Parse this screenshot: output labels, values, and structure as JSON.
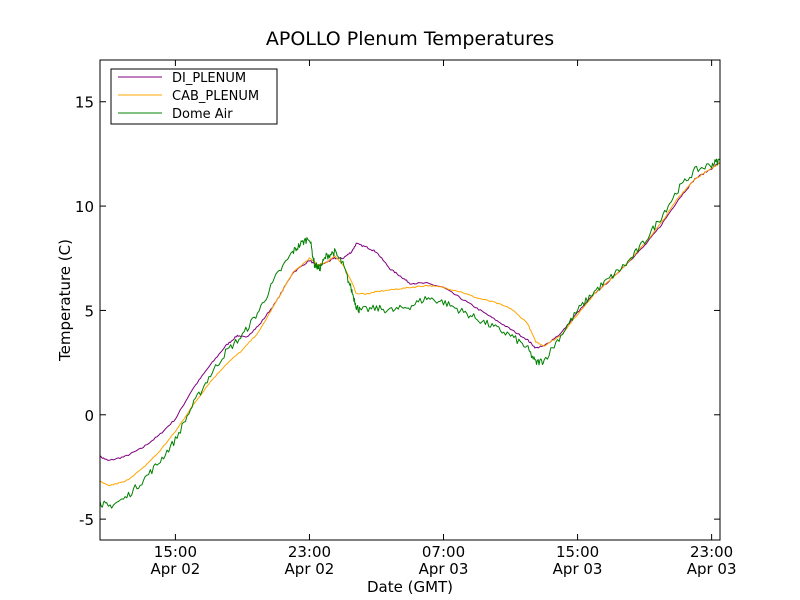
{
  "chart_data": {
    "type": "line",
    "title": "APOLLO Plenum Temperatures",
    "xlabel": "Date (GMT)",
    "ylabel": "Temperature (C)",
    "ylim": [
      -6,
      17
    ],
    "xlim_hours": [
      10.5,
      23.5
    ],
    "yticks": [
      {
        "value": 15,
        "label": "15"
      },
      {
        "value": 10,
        "label": "10"
      },
      {
        "value": 5,
        "label": "5"
      },
      {
        "value": 0,
        "label": "0"
      },
      {
        "value": -5,
        "label": "-5"
      }
    ],
    "xticks": [
      {
        "value": 15,
        "time": "15:00",
        "date": "Apr 02"
      },
      {
        "value": 23,
        "time": "23:00",
        "date": "Apr 02"
      },
      {
        "value": 31,
        "time": "07:00",
        "date": "Apr 03"
      },
      {
        "value": 39,
        "time": "15:00",
        "date": "Apr 03"
      },
      {
        "value": 47,
        "time": "23:00",
        "date": "Apr 03"
      }
    ],
    "xlim": [
      10.5,
      47.5
    ],
    "legend_position": "top-left",
    "series": [
      {
        "name": "DI_PLENUM",
        "color": "#800080",
        "x": [
          10.5,
          11,
          12,
          13,
          14,
          15,
          16,
          17,
          18,
          18.7,
          19.2,
          20,
          21,
          22,
          23,
          23.5,
          24,
          24.5,
          25,
          25.5,
          25.8,
          26.5,
          27,
          27.8,
          28.5,
          29,
          30,
          31,
          32,
          33,
          34,
          35,
          36,
          36.5,
          37,
          38,
          39,
          40,
          41,
          42,
          43,
          44,
          45,
          46,
          47,
          47.5
        ],
        "y": [
          -2.0,
          -2.2,
          -2.0,
          -1.6,
          -1.0,
          -0.2,
          1.2,
          2.3,
          3.3,
          3.8,
          3.7,
          4.3,
          5.4,
          6.8,
          7.4,
          7.1,
          7.3,
          7.5,
          7.5,
          7.8,
          8.2,
          8.0,
          7.8,
          7.0,
          6.6,
          6.3,
          6.3,
          6.1,
          5.6,
          5.1,
          4.6,
          4.1,
          3.6,
          3.2,
          3.3,
          3.9,
          4.9,
          5.8,
          6.5,
          7.3,
          8.1,
          9.1,
          10.3,
          11.3,
          11.8,
          12.1
        ]
      },
      {
        "name": "CAB_PLENUM",
        "color": "#ffa500",
        "x": [
          10.5,
          11,
          12,
          13,
          14,
          15,
          16,
          17,
          18,
          19,
          20,
          21,
          22,
          23,
          23.5,
          24,
          24.5,
          25,
          25.5,
          25.8,
          26.5,
          27,
          28,
          29,
          30,
          31,
          32,
          33,
          34,
          35,
          36,
          36.5,
          37,
          38,
          39,
          40,
          41,
          42,
          43,
          44,
          45,
          46,
          47,
          47.5
        ],
        "y": [
          -3.2,
          -3.4,
          -3.2,
          -2.6,
          -1.8,
          -0.8,
          0.4,
          1.5,
          2.4,
          3.1,
          4.0,
          5.4,
          6.8,
          7.5,
          7.2,
          7.3,
          7.6,
          7.2,
          6.4,
          5.8,
          5.8,
          5.9,
          6.0,
          6.1,
          6.2,
          6.1,
          5.9,
          5.6,
          5.4,
          5.1,
          4.4,
          3.5,
          3.3,
          3.8,
          4.8,
          5.8,
          6.5,
          7.3,
          8.2,
          9.2,
          10.4,
          11.3,
          11.8,
          12.1
        ]
      },
      {
        "name": "Dome Air",
        "color": "#008000",
        "x": [
          10.5,
          11,
          12,
          13,
          14,
          15,
          16,
          17,
          18,
          19,
          20,
          21,
          22,
          22.5,
          23,
          23.3,
          23.6,
          24,
          24.5,
          25,
          25.5,
          25.8,
          26,
          27,
          28,
          29,
          30,
          31,
          32,
          33,
          34,
          35,
          36,
          36.5,
          37,
          38,
          39,
          40,
          41,
          42,
          43,
          44,
          45,
          46,
          47,
          47.5
        ],
        "y": [
          -4.2,
          -4.4,
          -4.0,
          -3.2,
          -2.3,
          -1.2,
          0.4,
          1.8,
          3.0,
          3.8,
          5.0,
          6.6,
          7.8,
          8.2,
          8.5,
          7.2,
          7.0,
          7.6,
          7.8,
          7.2,
          6.0,
          5.2,
          5.0,
          5.1,
          5.0,
          5.2,
          5.6,
          5.4,
          5.0,
          4.6,
          4.2,
          3.8,
          3.2,
          2.5,
          2.6,
          3.8,
          5.0,
          5.9,
          6.6,
          7.3,
          8.3,
          9.5,
          10.8,
          11.7,
          12.0,
          12.2
        ]
      }
    ]
  }
}
